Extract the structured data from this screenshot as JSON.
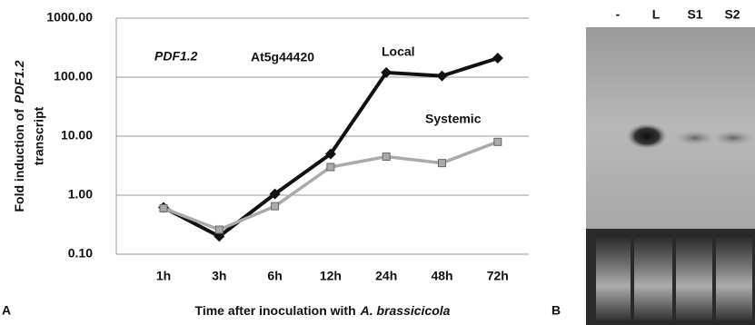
{
  "chart_data": {
    "type": "line",
    "title": "PDF1.2",
    "subtitle": "At5g44420",
    "categories": [
      "1h",
      "3h",
      "6h",
      "12h",
      "24h",
      "48h",
      "72h"
    ],
    "series": [
      {
        "name": "Local",
        "color": "#111111",
        "marker": "diamond",
        "values": [
          0.62,
          0.2,
          1.05,
          5,
          120,
          105,
          210
        ]
      },
      {
        "name": "Systemic",
        "color": "#aaaaaa",
        "marker": "square",
        "values": [
          0.6,
          0.26,
          0.65,
          3,
          4.5,
          3.5,
          8
        ]
      }
    ],
    "ylim": [
      0.1,
      1000
    ],
    "yticks": [
      {
        "value": 0.1,
        "label": "0.10"
      },
      {
        "value": 1,
        "label": "1.00"
      },
      {
        "value": 10,
        "label": "10.00"
      },
      {
        "value": 100,
        "label": "100.00"
      },
      {
        "value": 1000,
        "label": "1000.00"
      }
    ],
    "log_scale": true,
    "grid": true,
    "ylabel": [
      "Fold induction of",
      "PDF1.2",
      "transcript"
    ],
    "xlabel": [
      "Time after inoculation with",
      "A. brassicicola"
    ]
  },
  "panels": [
    "A",
    "B"
  ],
  "blot": {
    "lanes": [
      "-",
      "L",
      "S1",
      "S2"
    ]
  }
}
